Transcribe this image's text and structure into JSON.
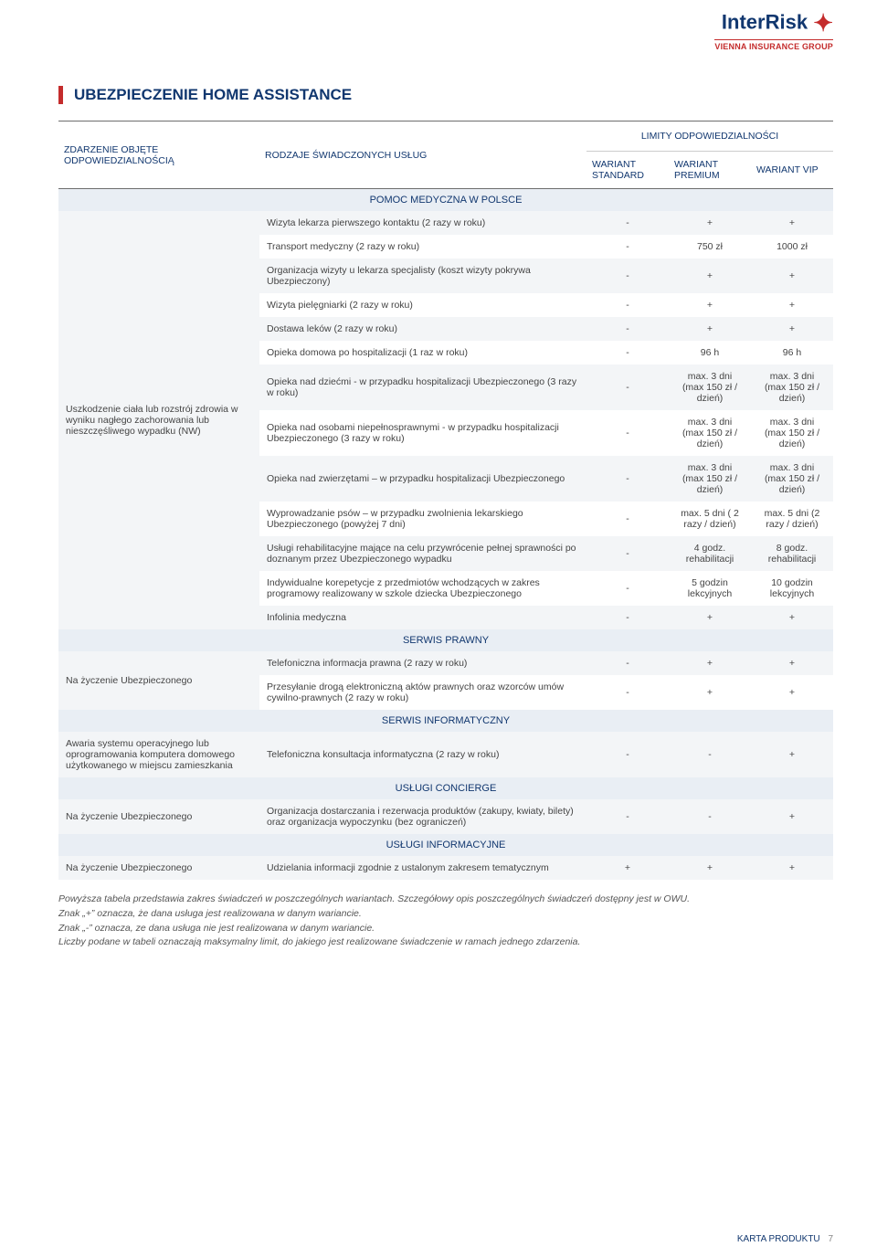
{
  "brand": {
    "name_part1": "Inter",
    "name_part2": "Risk",
    "subtitle": "VIENNA INSURANCE GROUP"
  },
  "page": {
    "title": "UBEZPIECZENIE HOME ASSISTANCE",
    "footer_label": "KARTA PRODUKTU",
    "page_number": "7"
  },
  "table_headers": {
    "col_event": "ZDARZENIE OBJĘTE ODPOWIEDZIALNOŚCIĄ",
    "col_services": "RODZAJE ŚWIADCZONYCH USŁUG",
    "limits_group": "LIMITY ODPOWIEDZIALNOŚCI",
    "wariant_std": "WARIANT STANDARD",
    "wariant_prem": "WARIANT PREMIUM",
    "wariant_vip": "WARIANT VIP"
  },
  "sections": [
    {
      "title": "POMOC MEDYCZNA W POLSCE",
      "left": "Uszkodzenie ciała lub rozstrój zdrowia w wyniku nagłego zachorowania lub nieszczęśliwego wypadku (NW)",
      "rows": [
        {
          "svc": "Wizyta lekarza pierwszego kontaktu (2 razy w roku)",
          "std": "-",
          "prem": "+",
          "vip": "+"
        },
        {
          "svc": "Transport medyczny (2 razy w roku)",
          "std": "-",
          "prem": "750 zł",
          "vip": "1000 zł"
        },
        {
          "svc": "Organizacja wizyty u lekarza specjalisty (koszt wizyty pokrywa Ubezpieczony)",
          "std": "-",
          "prem": "+",
          "vip": "+"
        },
        {
          "svc": "Wizyta pielęgniarki (2 razy w roku)",
          "std": "-",
          "prem": "+",
          "vip": "+"
        },
        {
          "svc": "Dostawa leków (2 razy w roku)",
          "std": "-",
          "prem": "+",
          "vip": "+"
        },
        {
          "svc": "Opieka domowa po hospitalizacji (1 raz w roku)",
          "std": "-",
          "prem": "96 h",
          "vip": "96 h"
        },
        {
          "svc": "Opieka nad dziećmi - w przypadku  hospitalizacji Ubezpieczonego (3 razy w roku)",
          "std": "-",
          "prem": "max. 3 dni (max 150 zł / dzień)",
          "vip": "max. 3 dni (max 150 zł / dzień)"
        },
        {
          "svc": "Opieka nad osobami niepełnosprawnymi - w przypadku hospitalizacji Ubezpieczonego (3 razy w roku)",
          "std": "-",
          "prem": "max. 3 dni (max 150 zł / dzień)",
          "vip": "max. 3 dni (max 150 zł / dzień)"
        },
        {
          "svc": "Opieka nad zwierzętami – w przypadku hospitalizacji Ubezpieczonego",
          "std": "-",
          "prem": "max. 3 dni (max 150 zł / dzień)",
          "vip": "max. 3 dni (max 150 zł / dzień)"
        },
        {
          "svc": "Wyprowadzanie psów – w przypadku zwolnienia lekarskiego Ubezpieczonego (powyżej 7 dni)",
          "std": "-",
          "prem": "max. 5 dni ( 2 razy / dzień)",
          "vip": "max. 5 dni (2 razy / dzień)"
        },
        {
          "svc": "Usługi rehabilitacyjne mające na celu przywrócenie pełnej sprawności po doznanym przez Ubezpieczonego wypadku",
          "std": "-",
          "prem": "4 godz. rehabilitacji",
          "vip": "8 godz. rehabilitacji"
        },
        {
          "svc": "Indywidualne korepetycje z przedmiotów wchodzących w zakres programowy realizowany w szkole dziecka Ubezpieczonego",
          "std": "-",
          "prem": "5 godzin lekcyjnych",
          "vip": "10 godzin lekcyjnych"
        },
        {
          "svc": "Infolinia medyczna",
          "std": "-",
          "prem": "+",
          "vip": "+"
        }
      ]
    },
    {
      "title": "SERWIS PRAWNY",
      "left": "Na życzenie Ubezpieczonego",
      "rows": [
        {
          "svc": "Telefoniczna informacja prawna (2 razy w roku)",
          "std": "-",
          "prem": "+",
          "vip": "+"
        },
        {
          "svc": "Przesyłanie drogą elektroniczną aktów prawnych oraz wzorców umów cywilno-prawnych (2 razy w roku)",
          "std": "-",
          "prem": "+",
          "vip": "+"
        }
      ]
    },
    {
      "title": "SERWIS INFORMATYCZNY",
      "left": "Awaria systemu operacyjnego lub oprogramowania komputera domowego użytkowanego w miejscu zamieszkania",
      "rows": [
        {
          "svc": "Telefoniczna konsultacja informatyczna (2 razy w roku)",
          "std": "-",
          "prem": "-",
          "vip": "+"
        }
      ]
    },
    {
      "title": "USŁUGI CONCIERGE",
      "left": "Na życzenie Ubezpieczonego",
      "rows": [
        {
          "svc": "Organizacja dostarczania i rezerwacja produktów (zakupy, kwiaty, bilety) oraz organizacja wypoczynku (bez ograniczeń)",
          "std": "-",
          "prem": "-",
          "vip": "+"
        }
      ]
    },
    {
      "title": "USŁUGI INFORMACYJNE",
      "left": "Na życzenie Ubezpieczonego",
      "rows": [
        {
          "svc": "Udzielania informacji zgodnie z ustalonym zakresem tematycznym",
          "std": "+",
          "prem": "+",
          "vip": "+"
        }
      ]
    }
  ],
  "footnotes": [
    "Powyższa tabela przedstawia zakres świadczeń w poszczególnych wariantach. Szczegółowy opis poszczególnych świadczeń dostępny jest w OWU.",
    "Znak „+” oznacza, że dana usługa jest realizowana w danym wariancie.",
    "Znak „-” oznacza, ze dana usługa nie jest realizowana w danym wariancie.",
    "Liczby podane w tabeli oznaczają maksymalny limit, do jakiego jest realizowane świadczenie w ramach jednego zdarzenia."
  ]
}
